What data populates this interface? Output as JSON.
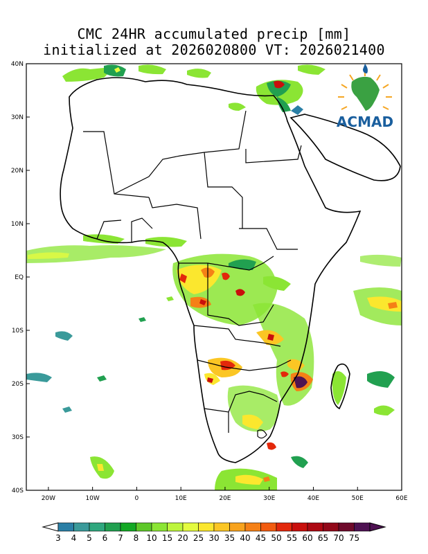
{
  "title": {
    "line1": "CMC 24HR accumulated precip [mm]",
    "line2": "initialized at 2026020800 VT: 2026021400"
  },
  "logo": {
    "text": "ACMAD",
    "color": "#1a5f9e"
  },
  "axes": {
    "y_labels": [
      "40N",
      "30N",
      "20N",
      "10N",
      "EQ",
      "10S",
      "20S",
      "30S",
      "40S"
    ],
    "x_labels": [
      "20W",
      "10W",
      "0",
      "10E",
      "20E",
      "30E",
      "40E",
      "50E",
      "60E"
    ],
    "lon_range": [
      -25,
      60
    ],
    "lat_range": [
      -40,
      40
    ]
  },
  "colorbar": {
    "labels": [
      "3",
      "4",
      "5",
      "6",
      "7",
      "8",
      "10",
      "15",
      "20",
      "25",
      "30",
      "35",
      "40",
      "45",
      "50",
      "55",
      "60",
      "65",
      "70",
      "75"
    ],
    "colors": [
      "#2a7fa6",
      "#3a9a9a",
      "#2fa77e",
      "#21a050",
      "#13a824",
      "#5ec829",
      "#8be534",
      "#bdf53c",
      "#e4fb3f",
      "#fbe72e",
      "#fbc624",
      "#f8a31d",
      "#f58016",
      "#f25c10",
      "#e3280b",
      "#c90f0c",
      "#ad0812",
      "#920819",
      "#6e0a2b",
      "#4e1252"
    ]
  },
  "precip_colors": {
    "light_teal": "#2a7fa6",
    "green": "#21a050",
    "lime": "#8be534",
    "yellow": "#e4fb3f",
    "orange": "#f58016",
    "red": "#c90f0c",
    "purple": "#4e1252"
  }
}
